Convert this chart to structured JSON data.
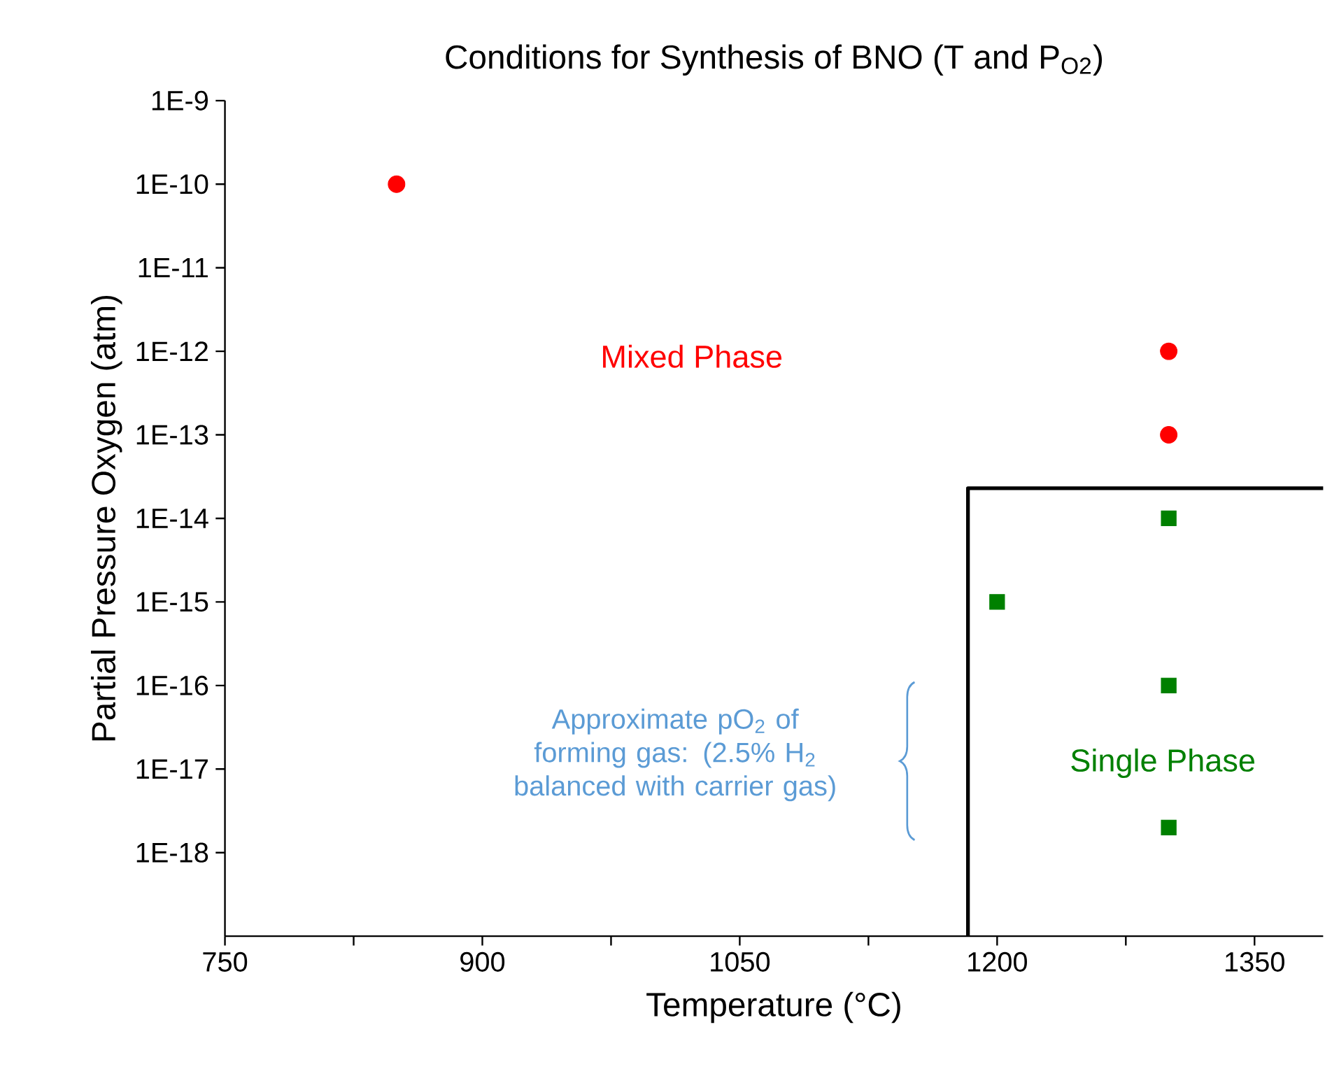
{
  "chart_data": {
    "type": "scatter",
    "title": "Conditions for Synthesis of BNO (T and P$_{O2}$)",
    "xlabel": "Temperature (°C)",
    "ylabel": "Partial Pressure Oxygen (atm)",
    "log": "y",
    "xlim": [
      750,
      1390
    ],
    "ylim": [
      1e-19,
      1e-09
    ],
    "xticks": [
      750,
      {
        "value": 825,
        "label": null
      },
      900,
      {
        "value": 975,
        "label": null
      },
      1050,
      {
        "value": 1125,
        "label": null
      },
      1200,
      {
        "value": 1275,
        "label": null
      },
      1350
    ],
    "yticks": [
      {
        "value": 1e-09,
        "label": "1E-9"
      },
      {
        "value": 1e-10,
        "label": "1E-10"
      },
      {
        "value": 1e-11,
        "label": "1E-11"
      },
      {
        "value": 1e-12,
        "label": "1E-12"
      },
      {
        "value": 1e-13,
        "label": "1E-13"
      },
      {
        "value": 1e-14,
        "label": "1E-14"
      },
      {
        "value": 1e-15,
        "label": "1E-15"
      },
      {
        "value": 1e-16,
        "label": "1E-16"
      },
      {
        "value": 1e-17,
        "label": "1E-17"
      },
      {
        "value": 1e-18,
        "label": "1E-18"
      }
    ],
    "series": [
      {
        "name": "Mixed Phase",
        "color": "#ff0000",
        "marker": "circle",
        "x": [
          850,
          1300,
          1300
        ],
        "values": [
          1e-10,
          1e-12,
          1e-13
        ]
      },
      {
        "name": "Single Phase",
        "color": "#008000",
        "marker": "square",
        "x": [
          1300,
          1200,
          1300,
          1300
        ],
        "values": [
          1e-14,
          1e-15,
          1e-16,
          2e-18
        ]
      },
      {
        "type": "line",
        "color": "#000000",
        "marker": "none",
        "x": [
          1183,
          1183,
          1390
        ],
        "values": [
          1e-19,
          2.3e-14,
          2.3e-14
        ]
      }
    ],
    "annotations": [
      "Approximate pO$_{2}$  of forming gas:  (2.5% H$_{2}$ balanced with carrier gas)"
    ]
  }
}
